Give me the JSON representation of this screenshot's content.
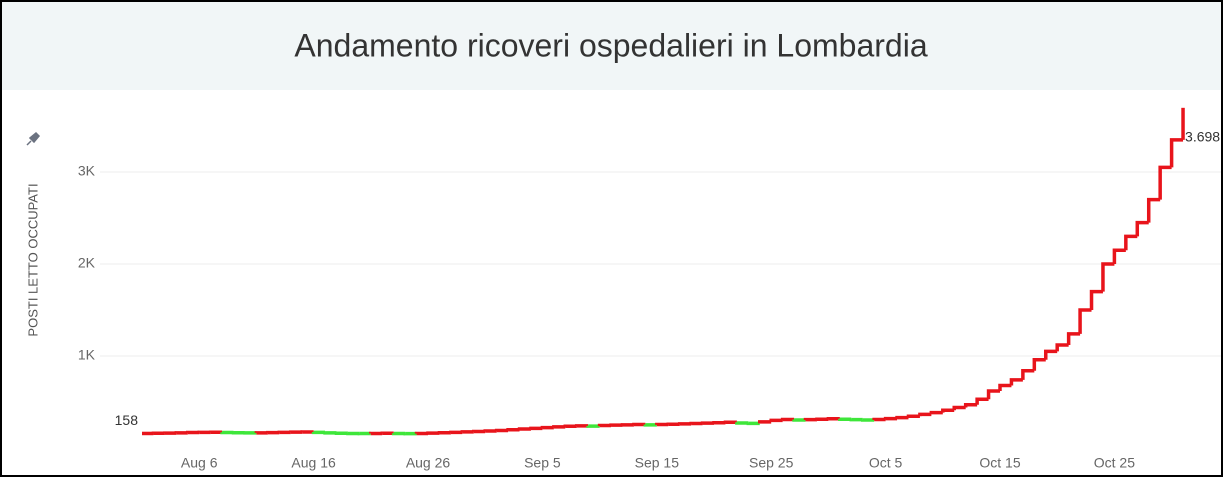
{
  "chart_data": {
    "type": "step",
    "title": "Andamento ricoveri ospedalieri in Lombardia",
    "y_label": "POSTI LETTO OCCUPATI",
    "x": [
      "Aug 1",
      "Aug 2",
      "Aug 3",
      "Aug 4",
      "Aug 5",
      "Aug 6",
      "Aug 7",
      "Aug 8",
      "Aug 9",
      "Aug 10",
      "Aug 11",
      "Aug 12",
      "Aug 13",
      "Aug 14",
      "Aug 15",
      "Aug 16",
      "Aug 17",
      "Aug 18",
      "Aug 19",
      "Aug 20",
      "Aug 21",
      "Aug 22",
      "Aug 23",
      "Aug 24",
      "Aug 25",
      "Aug 26",
      "Aug 27",
      "Aug 28",
      "Aug 29",
      "Aug 30",
      "Aug 31",
      "Sep 1",
      "Sep 2",
      "Sep 3",
      "Sep 4",
      "Sep 5",
      "Sep 6",
      "Sep 7",
      "Sep 8",
      "Sep 9",
      "Sep 10",
      "Sep 11",
      "Sep 12",
      "Sep 13",
      "Sep 14",
      "Sep 15",
      "Sep 16",
      "Sep 17",
      "Sep 18",
      "Sep 19",
      "Sep 20",
      "Sep 21",
      "Sep 22",
      "Sep 23",
      "Sep 24",
      "Sep 25",
      "Sep 26",
      "Sep 27",
      "Sep 28",
      "Sep 29",
      "Sep 30",
      "Oct 1",
      "Oct 2",
      "Oct 3",
      "Oct 4",
      "Oct 5",
      "Oct 6",
      "Oct 7",
      "Oct 8",
      "Oct 9",
      "Oct 10",
      "Oct 11",
      "Oct 12",
      "Oct 13",
      "Oct 14",
      "Oct 15",
      "Oct 16",
      "Oct 17",
      "Oct 18",
      "Oct 19",
      "Oct 20",
      "Oct 21",
      "Oct 22",
      "Oct 23",
      "Oct 24",
      "Oct 25",
      "Oct 26",
      "Oct 27",
      "Oct 28",
      "Oct 29",
      "Oct 30",
      "Oct 31"
    ],
    "values": [
      158,
      160,
      162,
      165,
      168,
      170,
      171,
      168,
      166,
      164,
      165,
      167,
      170,
      172,
      174,
      170,
      165,
      160,
      158,
      157,
      158,
      160,
      158,
      156,
      158,
      162,
      166,
      170,
      175,
      180,
      185,
      190,
      198,
      206,
      214,
      222,
      230,
      236,
      240,
      238,
      244,
      248,
      252,
      256,
      252,
      255,
      258,
      262,
      266,
      270,
      275,
      280,
      272,
      268,
      284,
      300,
      310,
      304,
      308,
      312,
      318,
      312,
      308,
      304,
      310,
      320,
      330,
      345,
      365,
      385,
      410,
      440,
      470,
      530,
      620,
      680,
      740,
      840,
      960,
      1050,
      1120,
      1240,
      1500,
      1700,
      2000,
      2150,
      2300,
      2450,
      2700,
      3050,
      3350,
      3698
    ],
    "value_labels": [
      "158",
      null,
      null,
      null,
      null,
      null,
      null,
      null,
      null,
      null,
      null,
      null,
      null,
      null,
      null,
      null,
      null,
      null,
      null,
      null,
      null,
      null,
      null,
      null,
      null,
      null,
      null,
      null,
      null,
      null,
      null,
      null,
      null,
      null,
      null,
      null,
      null,
      null,
      null,
      null,
      null,
      null,
      null,
      null,
      null,
      null,
      null,
      null,
      null,
      null,
      null,
      null,
      null,
      null,
      null,
      null,
      null,
      null,
      null,
      null,
      null,
      null,
      null,
      null,
      null,
      null,
      null,
      null,
      null,
      null,
      null,
      null,
      null,
      null,
      null,
      null,
      null,
      null,
      null,
      null,
      null,
      null,
      null,
      null,
      null,
      null,
      null,
      null,
      null,
      null,
      null,
      "3.698"
    ],
    "increase_color": "#e8141b",
    "decrease_color": "#3ee63a",
    "xticks": [
      "Aug 6",
      "Aug 16",
      "Aug 26",
      "Sep 5",
      "Sep 15",
      "Sep 25",
      "Oct 5",
      "Oct 15",
      "Oct 25"
    ],
    "ylim": [
      0,
      3870
    ],
    "yticks": [
      {
        "value": 1000,
        "label": "1K"
      },
      {
        "value": 2000,
        "label": "2K"
      },
      {
        "value": 3000,
        "label": "3K"
      }
    ],
    "grid": true
  }
}
